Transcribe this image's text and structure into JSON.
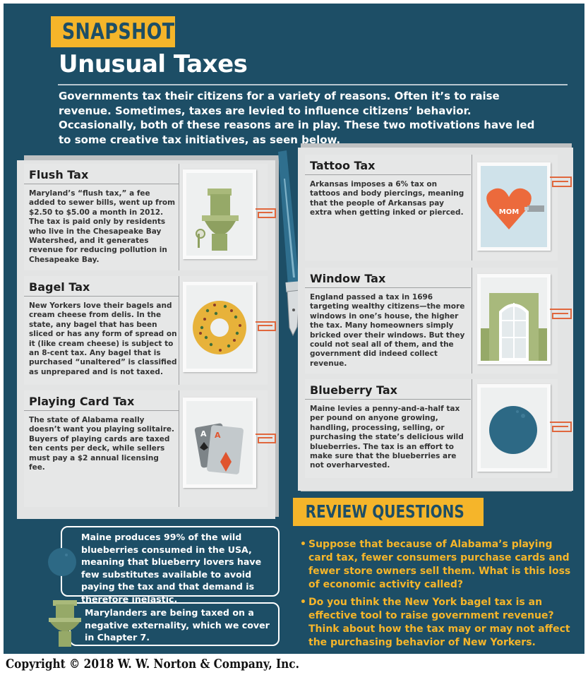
{
  "header": {
    "banner": "SNAPSHOT",
    "title": "Unusual Taxes",
    "intro": "Governments tax their citizens for a variety of reasons. Often it’s to raise revenue. Sometimes, taxes are levied to influence citizens’ behavior. Occasionally, both of these reasons are in play. These two motivations have led to some creative tax initiatives, as seen below."
  },
  "left_taxes": [
    {
      "name": "Flush Tax",
      "text": "Maryland’s “flush tax,” a fee added to sewer bills, went up from $2.50 to $5.00 a month in 2012. The tax is paid only by residents who live in the Chesapeake Bay Watershed, and it generates revenue for reducing pollution in Chesapeake Bay."
    },
    {
      "name": "Bagel Tax",
      "text": "New Yorkers love their bagels and cream cheese from delis. In the state, any bagel that has been sliced or has any form of spread on it (like cream cheese) is subject to an 8-cent tax. Any bagel that is purchased “unaltered” is classified as unprepared and is not taxed."
    },
    {
      "name": "Playing Card Tax",
      "text": "The state of Alabama really doesn’t want you playing solitaire. Buyers of playing cards are taxed ten cents per deck, while sellers must pay a $2 annual licensing fee."
    }
  ],
  "right_taxes": [
    {
      "name": "Tattoo Tax",
      "text": "Arkansas imposes a 6% tax on tattoos and body piercings, meaning that the people of Arkansas pay extra when getting inked or pierced."
    },
    {
      "name": "Window Tax",
      "text": "England passed a tax in 1696 targeting wealthy citizens—the more windows in one’s house, the higher the tax. Many homeowners simply bricked over their windows. But they could not seal all of them, and the government did indeed collect revenue."
    },
    {
      "name": "Blueberry Tax",
      "text": "Maine levies a penny-and-a-half tax per pound on anyone growing, handling, processing, selling, or purchasing the state’s delicious wild blueberries. The tax is an effort to make sure that the blueberries are not overharvested."
    }
  ],
  "illustrations": {
    "tattoo_heart_label": "MOM",
    "card_rank_1": "A",
    "card_rank_2": "A"
  },
  "callouts": [
    {
      "icon": "blueberry-icon",
      "text": "Maine produces 99% of the wild blueberries consumed in the USA, meaning that blueberry lovers have few substitutes available to avoid paying the tax and that demand is therefore inelastic."
    },
    {
      "icon": "toilet-icon",
      "text": "Marylanders are being taxed on a negative externality, which we cover in Chapter 7."
    }
  ],
  "review": {
    "banner": "REVIEW QUESTIONS",
    "bullet": "•",
    "questions": [
      "Suppose that because of Alabama’s playing card tax, fewer consumers purchase cards and fewer store owners sell them. What is this loss of economic activity called?",
      "Do you think the New York bagel tax is an effective tool to raise government revenue? Think about how the tax may or may not affect the purchasing behavior of New Yorkers."
    ]
  },
  "footer": {
    "copyright": "Copyright © 2018 W. W. Norton & Company, Inc."
  },
  "colors": {
    "background": "#1d4e66",
    "accent": "#f5b52a",
    "paper": "#e6e7e7",
    "blueberry": "#2d6985",
    "green": "#96a968",
    "heart": "#ec6a3c"
  }
}
